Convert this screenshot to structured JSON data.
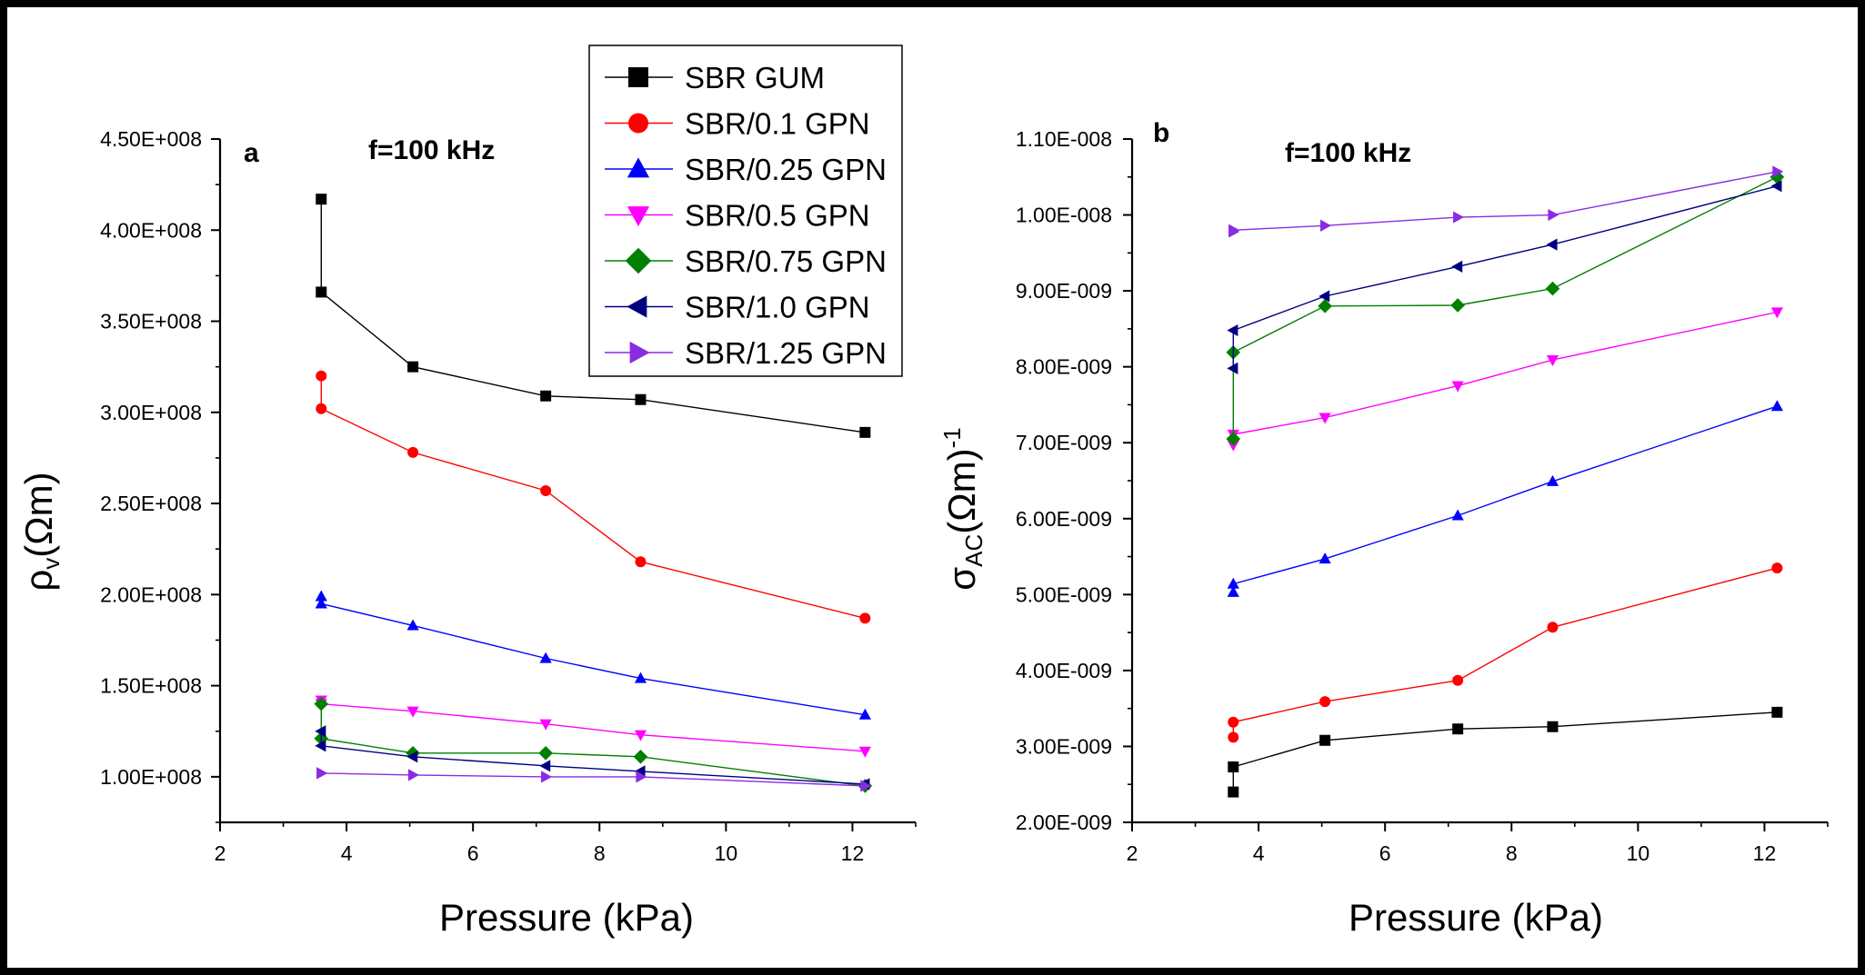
{
  "chart_data": [
    {
      "type": "line",
      "panel": "a",
      "annotation": "f=100 kHz",
      "xlabel": "Pressure (kPa)",
      "ylabel_symbol": "ρ",
      "ylabel_subscript": "v",
      "ylabel_unit": "(Ωm)",
      "xlim": [
        2,
        13
      ],
      "ylim": [
        75000000,
        450000000
      ],
      "x_ticks": [
        2,
        4,
        6,
        8,
        10,
        12
      ],
      "y_ticks": [
        100000000,
        150000000,
        200000000,
        250000000,
        300000000,
        350000000,
        400000000,
        450000000
      ],
      "y_tick_labels": [
        "1.00E+008",
        "1.50E+008",
        "2.00E+008",
        "2.50E+008",
        "3.00E+008",
        "3.50E+008",
        "4.00E+008",
        "4.50E+008"
      ],
      "x": [
        3.6,
        3.6,
        5.05,
        7.15,
        8.65,
        12.2
      ],
      "series": [
        {
          "name": "SBR GUM",
          "values": [
            417000000,
            366000000,
            325000000,
            309000000,
            307000000,
            289000000
          ]
        },
        {
          "name": "SBR/0.1 GPN",
          "values": [
            320000000,
            302000000,
            278000000,
            257000000,
            218000000,
            187000000
          ]
        },
        {
          "name": "SBR/0.25 GPN",
          "values": [
            199000000,
            195000000,
            183000000,
            165000000,
            154000000,
            134000000
          ]
        },
        {
          "name": "SBR/0.5 GPN",
          "values": [
            142000000,
            140000000,
            136000000,
            129000000,
            123000000,
            114000000
          ]
        },
        {
          "name": "SBR/0.75 GPN",
          "values": [
            140000000,
            121000000,
            113000000,
            113000000,
            111000000,
            95000000
          ]
        },
        {
          "name": "SBR/1.0 GPN",
          "values": [
            125000000,
            117000000,
            111000000,
            106000000,
            103000000,
            96000000
          ]
        },
        {
          "name": "SBR/1.25 GPN",
          "values": [
            102000000,
            102000000,
            101000000,
            100000000,
            100000000,
            95000000
          ]
        }
      ]
    },
    {
      "type": "line",
      "panel": "b",
      "annotation": "f=100 kHz",
      "xlabel": "Pressure (kPa)",
      "ylabel_symbol": "σ",
      "ylabel_subscript": "AC",
      "ylabel_unit": "(Ωm)",
      "ylabel_superscript": "-1",
      "xlim": [
        2,
        13
      ],
      "ylim": [
        2e-09,
        1.1e-08
      ],
      "x_ticks": [
        2,
        4,
        6,
        8,
        10,
        12
      ],
      "y_ticks": [
        2e-09,
        3e-09,
        4e-09,
        5e-09,
        6e-09,
        7e-09,
        8e-09,
        9e-09,
        1e-08,
        1.1e-08
      ],
      "y_tick_labels": [
        "2.00E-009",
        "3.00E-009",
        "4.00E-009",
        "5.00E-009",
        "6.00E-009",
        "7.00E-009",
        "8.00E-009",
        "9.00E-009",
        "1.00E-008",
        "1.10E-008"
      ],
      "x": [
        3.6,
        3.6,
        5.05,
        7.15,
        8.65,
        12.2
      ],
      "series": [
        {
          "name": "SBR GUM",
          "values": [
            2.4e-09,
            2.73e-09,
            3.08e-09,
            3.23e-09,
            3.26e-09,
            3.45e-09
          ]
        },
        {
          "name": "SBR/0.1 GPN",
          "values": [
            3.12e-09,
            3.32e-09,
            3.59e-09,
            3.87e-09,
            4.57e-09,
            5.35e-09
          ]
        },
        {
          "name": "SBR/0.25 GPN",
          "values": [
            5.03e-09,
            5.14e-09,
            5.47e-09,
            6.04e-09,
            6.49e-09,
            7.48e-09
          ]
        },
        {
          "name": "SBR/0.5 GPN",
          "values": [
            6.97e-09,
            7.11e-09,
            7.33e-09,
            7.75e-09,
            8.09e-09,
            8.72e-09
          ]
        },
        {
          "name": "SBR/0.75 GPN",
          "values": [
            7.05e-09,
            8.19e-09,
            8.8e-09,
            8.81e-09,
            9.03e-09,
            1.05e-08
          ]
        },
        {
          "name": "SBR/1.0 GPN",
          "values": [
            7.98e-09,
            8.48e-09,
            8.93e-09,
            9.32e-09,
            9.61e-09,
            1.038e-08
          ]
        },
        {
          "name": "SBR/1.25 GPN",
          "values": [
            9.78e-09,
            9.8e-09,
            9.86e-09,
            9.97e-09,
            1e-08,
            1.057e-08
          ]
        }
      ]
    }
  ],
  "legend": [
    {
      "label": "SBR GUM",
      "marker": "square",
      "color": "#000000"
    },
    {
      "label": "SBR/0.1 GPN",
      "marker": "circle",
      "color": "#ff0000"
    },
    {
      "label": "SBR/0.25 GPN",
      "marker": "triangle-up",
      "color": "#0000ff"
    },
    {
      "label": "SBR/0.5 GPN",
      "marker": "triangle-down",
      "color": "#ff00ff"
    },
    {
      "label": "SBR/0.75 GPN",
      "marker": "diamond",
      "color": "#008000"
    },
    {
      "label": "SBR/1.0 GPN",
      "marker": "triangle-left",
      "color": "#000080"
    },
    {
      "label": "SBR/1.25 GPN",
      "marker": "triangle-right",
      "color": "#8a2be2"
    }
  ]
}
